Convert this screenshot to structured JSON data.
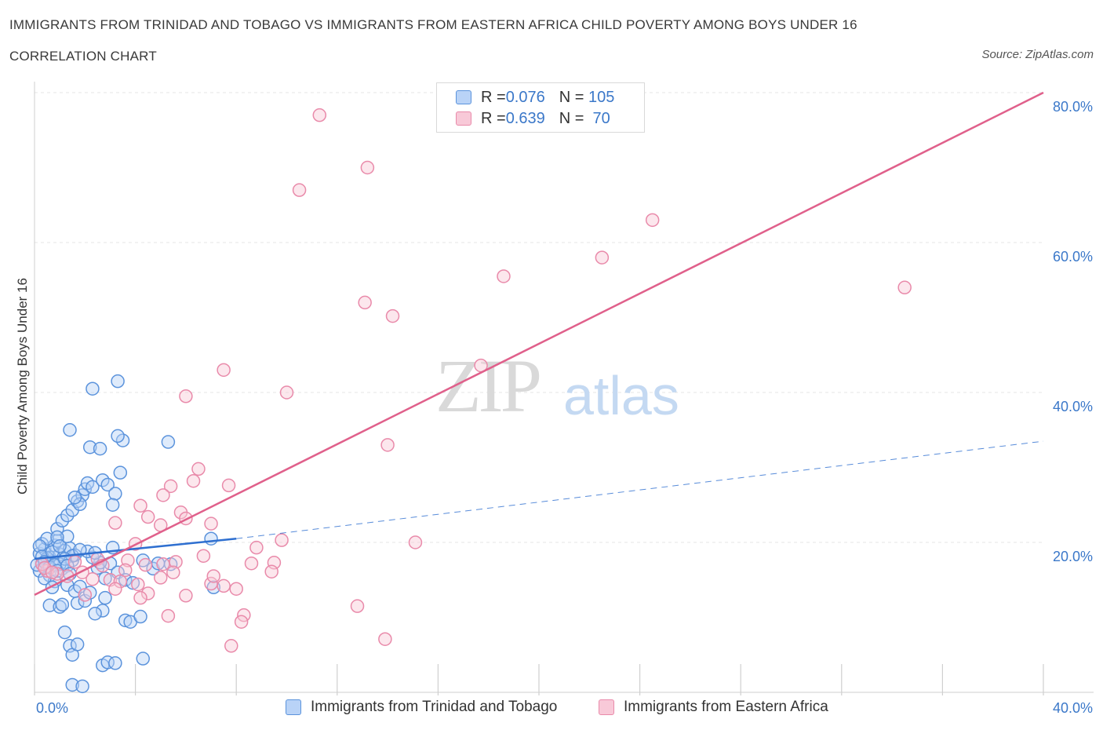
{
  "header": {
    "title": "IMMIGRANTS FROM TRINIDAD AND TOBAGO VS IMMIGRANTS FROM EASTERN AFRICA CHILD POVERTY AMONG BOYS UNDER 16",
    "subtitle": "CORRELATION CHART",
    "source": "Source: ZipAtlas.com"
  },
  "watermark": {
    "zip": "ZIP",
    "atlas": "atlas"
  },
  "colors": {
    "blue": "#5b93dc",
    "blue_fill": "#b9d3f7",
    "blue_line": "#2e6fd0",
    "pink": "#e98aaa",
    "pink_fill": "#f8c9d8",
    "pink_line": "#e0608b",
    "grid": "#e4e4e4",
    "tick_text": "#3b78c9"
  },
  "legend_top": {
    "rows": [
      {
        "r_label": "R = ",
        "r_value": "0.076",
        "n_label": "N = ",
        "n_value": "105",
        "series": "blue"
      },
      {
        "r_label": "R = ",
        "r_value": "0.639",
        "n_label": "N = ",
        "n_value": " 70",
        "series": "pink"
      }
    ]
  },
  "legend_bottom": {
    "items": [
      {
        "label": "Immigrants from Trinidad and Tobago",
        "series": "blue"
      },
      {
        "label": "Immigrants from Eastern Africa",
        "series": "pink"
      }
    ]
  },
  "chart_data": {
    "type": "scatter",
    "title": "IMMIGRANTS FROM TRINIDAD AND TOBAGO VS IMMIGRANTS FROM EASTERN AFRICA CHILD POVERTY AMONG BOYS UNDER 16",
    "xlabel": "",
    "ylabel": "Child Poverty Among Boys Under 16",
    "xlim": [
      0,
      40
    ],
    "ylim": [
      0,
      80
    ],
    "x_tick_labels": [
      "0.0%",
      "40.0%"
    ],
    "y_tick_labels": [
      "20.0%",
      "40.0%",
      "60.0%",
      "80.0%"
    ],
    "y_ticks": [
      20,
      40,
      60,
      80
    ],
    "grid": true,
    "legend": "top-center",
    "series": [
      {
        "name": "Immigrants from Trinidad and Tobago",
        "color": "#5b93dc",
        "R": 0.076,
        "N": 105,
        "trend": {
          "x0": 0,
          "y0": 17.8,
          "x1": 8.0,
          "y1": 20.5,
          "dashed_to_x": 40,
          "dashed_to_y": 33.5
        },
        "points": [
          [
            0.2,
            18.5
          ],
          [
            0.3,
            17.2
          ],
          [
            0.4,
            19.1
          ],
          [
            0.5,
            16.8
          ],
          [
            0.6,
            18.0
          ],
          [
            0.7,
            17.5
          ],
          [
            0.8,
            19.6
          ],
          [
            0.9,
            20.2
          ],
          [
            1.0,
            18.4
          ],
          [
            1.1,
            16.5
          ],
          [
            0.3,
            19.8
          ],
          [
            0.5,
            20.5
          ],
          [
            0.6,
            15.6
          ],
          [
            0.8,
            14.8
          ],
          [
            1.0,
            17.1
          ],
          [
            1.2,
            18.9
          ],
          [
            1.3,
            20.8
          ],
          [
            1.4,
            19.2
          ],
          [
            1.5,
            17.6
          ],
          [
            1.6,
            18.3
          ],
          [
            0.2,
            16.2
          ],
          [
            0.4,
            15.2
          ],
          [
            0.7,
            14.0
          ],
          [
            0.9,
            21.8
          ],
          [
            1.1,
            22.9
          ],
          [
            1.3,
            23.6
          ],
          [
            1.5,
            24.3
          ],
          [
            1.7,
            25.5
          ],
          [
            1.9,
            26.3
          ],
          [
            2.0,
            27.1
          ],
          [
            2.1,
            27.9
          ],
          [
            1.8,
            25.1
          ],
          [
            1.6,
            26.0
          ],
          [
            2.3,
            27.4
          ],
          [
            2.7,
            28.3
          ],
          [
            2.9,
            27.7
          ],
          [
            3.2,
            26.5
          ],
          [
            3.4,
            29.3
          ],
          [
            3.1,
            25.0
          ],
          [
            1.4,
            35.0
          ],
          [
            2.2,
            32.7
          ],
          [
            2.6,
            32.5
          ],
          [
            3.5,
            33.6
          ],
          [
            3.3,
            34.2
          ],
          [
            5.3,
            33.4
          ],
          [
            2.3,
            40.5
          ],
          [
            3.3,
            41.5
          ],
          [
            0.6,
            11.6
          ],
          [
            1.0,
            11.4
          ],
          [
            1.1,
            11.7
          ],
          [
            1.7,
            11.9
          ],
          [
            2.0,
            12.2
          ],
          [
            2.8,
            12.6
          ],
          [
            2.7,
            10.9
          ],
          [
            2.4,
            10.5
          ],
          [
            3.6,
            9.6
          ],
          [
            3.8,
            9.4
          ],
          [
            4.2,
            10.1
          ],
          [
            1.2,
            8.0
          ],
          [
            1.4,
            6.2
          ],
          [
            1.5,
            5.0
          ],
          [
            1.7,
            6.4
          ],
          [
            2.7,
            3.6
          ],
          [
            2.9,
            4.0
          ],
          [
            3.2,
            3.9
          ],
          [
            4.3,
            4.5
          ],
          [
            1.5,
            1.0
          ],
          [
            1.9,
            0.8
          ],
          [
            1.3,
            14.3
          ],
          [
            1.6,
            13.5
          ],
          [
            1.8,
            14.1
          ],
          [
            2.2,
            13.3
          ],
          [
            2.5,
            16.6
          ],
          [
            2.8,
            15.2
          ],
          [
            3.0,
            17.2
          ],
          [
            3.3,
            16.0
          ],
          [
            3.6,
            15.0
          ],
          [
            3.9,
            14.6
          ],
          [
            4.3,
            17.6
          ],
          [
            4.7,
            16.5
          ],
          [
            4.9,
            17.2
          ],
          [
            5.4,
            17.1
          ],
          [
            7.1,
            14.0
          ],
          [
            7.0,
            20.5
          ],
          [
            2.6,
            17.3
          ],
          [
            2.3,
            18.0
          ],
          [
            2.1,
            18.8
          ],
          [
            3.1,
            19.3
          ],
          [
            1.5,
            18.2
          ],
          [
            0.9,
            20.7
          ],
          [
            1.8,
            19.0
          ],
          [
            2.4,
            18.6
          ],
          [
            0.5,
            17.9
          ],
          [
            0.1,
            17.0
          ],
          [
            0.2,
            19.5
          ],
          [
            0.3,
            18.1
          ],
          [
            0.4,
            17.4
          ],
          [
            0.6,
            16.7
          ],
          [
            0.7,
            18.7
          ],
          [
            0.8,
            17.0
          ],
          [
            0.9,
            16.2
          ],
          [
            1.0,
            19.5
          ],
          [
            1.2,
            17.8
          ],
          [
            1.3,
            16.9
          ],
          [
            1.4,
            15.8
          ]
        ]
      },
      {
        "name": "Immigrants from Eastern Africa",
        "color": "#e98aaa",
        "R": 0.639,
        "N": 70,
        "trend": {
          "x0": 0,
          "y0": 13.0,
          "x1": 40,
          "y1": 80.0
        },
        "points": [
          [
            11.3,
            77.0
          ],
          [
            13.2,
            70.0
          ],
          [
            10.5,
            67.0
          ],
          [
            24.5,
            63.0
          ],
          [
            22.5,
            58.0
          ],
          [
            18.6,
            55.5
          ],
          [
            34.5,
            54.0
          ],
          [
            13.1,
            52.0
          ],
          [
            14.2,
            50.2
          ],
          [
            7.5,
            43.0
          ],
          [
            17.7,
            43.6
          ],
          [
            10.0,
            40.0
          ],
          [
            6.0,
            39.5
          ],
          [
            14.0,
            33.0
          ],
          [
            6.5,
            29.8
          ],
          [
            6.3,
            28.2
          ],
          [
            7.7,
            27.6
          ],
          [
            5.4,
            27.5
          ],
          [
            5.1,
            26.3
          ],
          [
            4.2,
            24.9
          ],
          [
            4.5,
            23.4
          ],
          [
            5.8,
            24.0
          ],
          [
            6.0,
            23.2
          ],
          [
            5.0,
            22.3
          ],
          [
            3.2,
            22.6
          ],
          [
            7.0,
            22.5
          ],
          [
            8.8,
            19.3
          ],
          [
            9.8,
            20.3
          ],
          [
            15.1,
            20.0
          ],
          [
            4.0,
            19.8
          ],
          [
            6.7,
            18.2
          ],
          [
            8.6,
            17.2
          ],
          [
            9.5,
            17.3
          ],
          [
            4.4,
            17.0
          ],
          [
            5.1,
            17.1
          ],
          [
            5.6,
            17.4
          ],
          [
            3.7,
            17.6
          ],
          [
            3.6,
            16.3
          ],
          [
            2.5,
            17.8
          ],
          [
            2.7,
            16.9
          ],
          [
            1.6,
            17.4
          ],
          [
            1.9,
            16.0
          ],
          [
            1.3,
            15.5
          ],
          [
            0.5,
            16.2
          ],
          [
            0.3,
            17.1
          ],
          [
            0.4,
            16.6
          ],
          [
            0.9,
            15.8
          ],
          [
            0.7,
            16.0
          ],
          [
            2.3,
            15.1
          ],
          [
            3.0,
            15.0
          ],
          [
            3.4,
            14.8
          ],
          [
            3.2,
            13.8
          ],
          [
            4.1,
            14.4
          ],
          [
            4.5,
            13.2
          ],
          [
            5.5,
            16.0
          ],
          [
            7.0,
            14.5
          ],
          [
            7.5,
            14.2
          ],
          [
            8.0,
            13.8
          ],
          [
            9.4,
            16.1
          ],
          [
            7.1,
            15.5
          ],
          [
            6.0,
            12.9
          ],
          [
            5.0,
            15.3
          ],
          [
            4.2,
            12.6
          ],
          [
            8.3,
            10.3
          ],
          [
            8.2,
            9.4
          ],
          [
            12.8,
            11.5
          ],
          [
            13.9,
            7.1
          ],
          [
            7.8,
            6.2
          ],
          [
            5.3,
            10.2
          ],
          [
            2.0,
            13.0
          ]
        ]
      }
    ]
  }
}
